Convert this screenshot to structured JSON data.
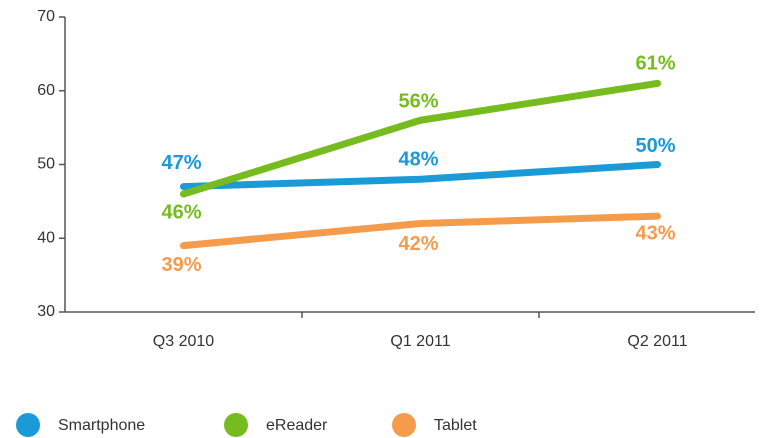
{
  "chart_data": {
    "type": "line",
    "categories": [
      "Q3 2010",
      "Q1 2011",
      "Q2 2011"
    ],
    "series": [
      {
        "name": "Smartphone",
        "color": "#1a9ad6",
        "values": [
          47,
          48,
          50
        ],
        "value_labels": [
          "47%",
          "48%",
          "50%"
        ]
      },
      {
        "name": "eReader",
        "color": "#77bc1f",
        "values": [
          46,
          56,
          61
        ],
        "value_labels": [
          "46%",
          "56%",
          "61%"
        ]
      },
      {
        "name": "Tablet",
        "color": "#f59c4c",
        "values": [
          39,
          42,
          43
        ],
        "value_labels": [
          "39%",
          "42%",
          "43%"
        ]
      }
    ],
    "ylim": [
      30,
      70
    ],
    "yticks": [
      30,
      40,
      50,
      60,
      70
    ],
    "legend": "bottom"
  }
}
